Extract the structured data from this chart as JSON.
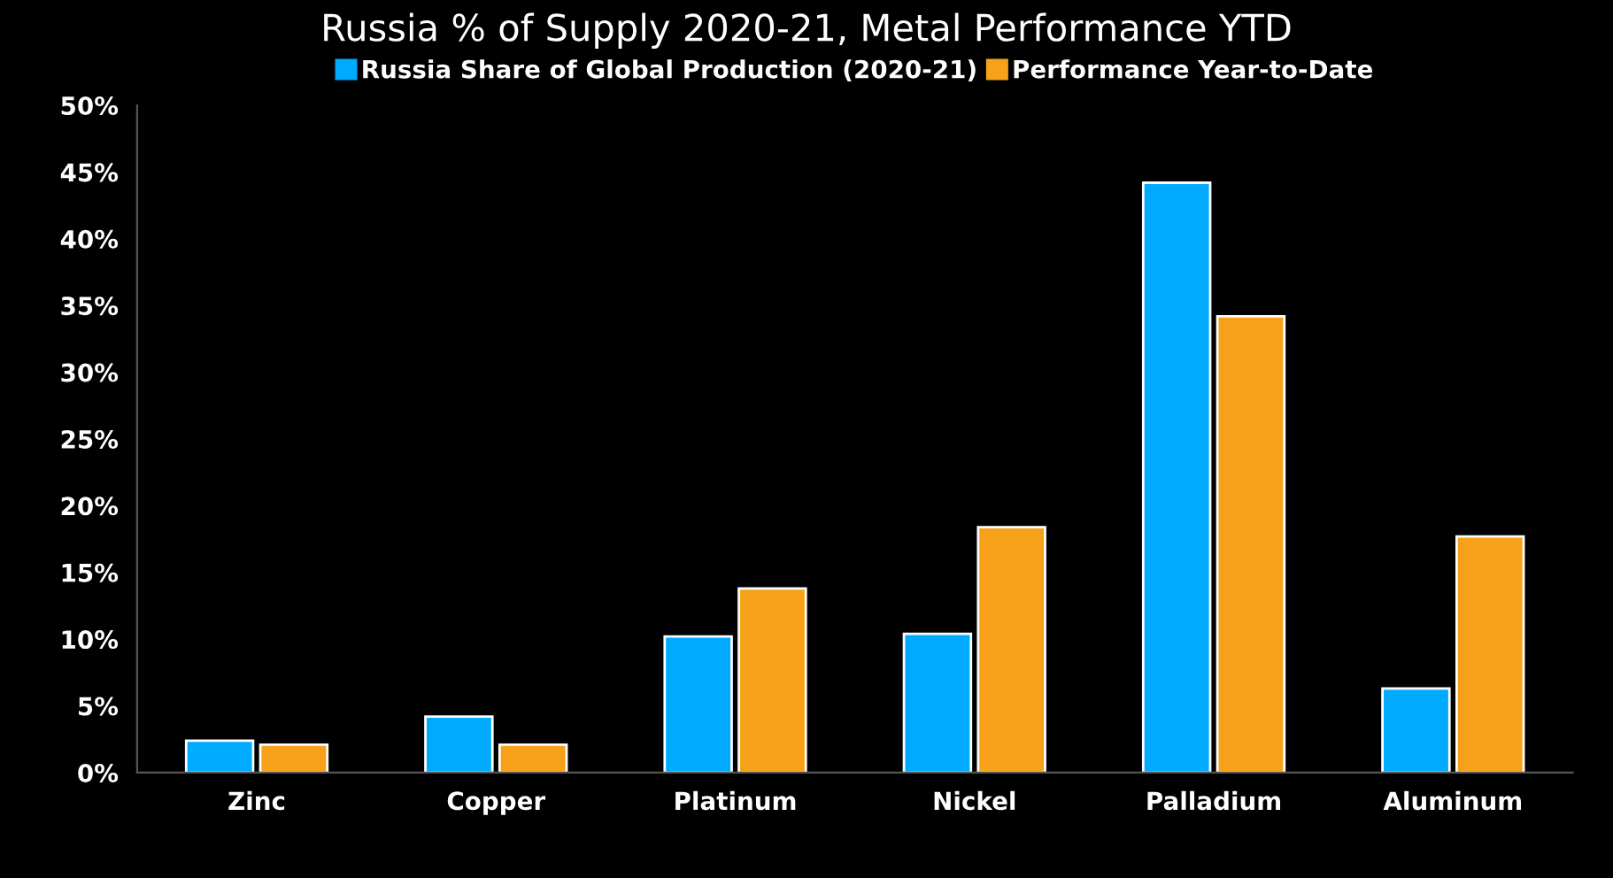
{
  "chart_data": {
    "type": "bar",
    "title": "Russia % of Supply 2020-21, Metal Performance YTD",
    "categories": [
      "Zinc",
      "Copper",
      "Platinum",
      "Nickel",
      "Palladium",
      "Aluminum"
    ],
    "series": [
      {
        "name": "Russia Share of Global Production (2020-21)",
        "color": "#00aaff",
        "values": [
          2.4,
          4.2,
          10.2,
          10.4,
          44.2,
          6.3
        ]
      },
      {
        "name": "Performance Year-to-Date",
        "color": "#f7a11a",
        "values": [
          2.1,
          2.1,
          13.8,
          18.4,
          34.2,
          17.7
        ]
      }
    ],
    "ylim": [
      0,
      50
    ],
    "yticks": [
      {
        "value": 0,
        "label": "0%"
      },
      {
        "value": 5,
        "label": "5%"
      },
      {
        "value": 10,
        "label": "10%"
      },
      {
        "value": 15,
        "label": "15%"
      },
      {
        "value": 20,
        "label": "20%"
      },
      {
        "value": 25,
        "label": "25%"
      },
      {
        "value": 30,
        "label": "30%"
      },
      {
        "value": 35,
        "label": "35%"
      },
      {
        "value": 40,
        "label": "40%"
      },
      {
        "value": 45,
        "label": "45%"
      },
      {
        "value": 50,
        "label": "50%"
      }
    ],
    "legend": "top",
    "grid": false
  }
}
